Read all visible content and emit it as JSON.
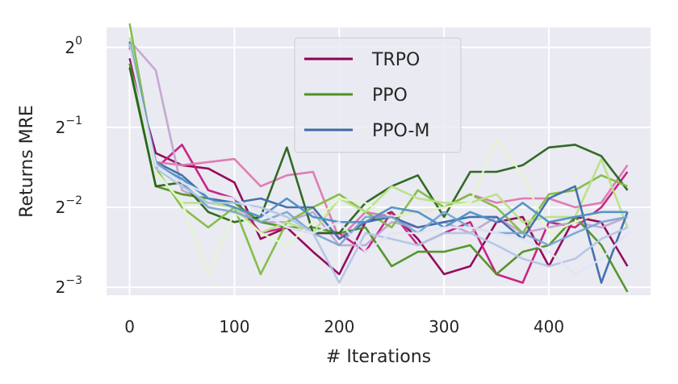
{
  "chart_data": {
    "type": "line",
    "xlabel": "# Iterations",
    "ylabel": "Returns MRE",
    "xlim": [
      -22,
      497
    ],
    "ylim_log2": [
      -3.1,
      0.25
    ],
    "y_scale": "log2",
    "grid": true,
    "legend_position": "top-center",
    "x_ticks": [
      0,
      100,
      200,
      300,
      400
    ],
    "y_ticks": [
      {
        "value": 1,
        "base": "2",
        "exp": "0"
      },
      {
        "value": 0.5,
        "base": "2",
        "exp": "−1"
      },
      {
        "value": 0.25,
        "base": "2",
        "exp": "−2"
      },
      {
        "value": 0.125,
        "base": "2",
        "exp": "−3"
      }
    ],
    "x": [
      0,
      25,
      50,
      75,
      100,
      125,
      150,
      175,
      200,
      225,
      250,
      275,
      300,
      325,
      350,
      375,
      400,
      425,
      450,
      475
    ],
    "series": [
      {
        "name": "TRPO",
        "color": "#8e0152",
        "values": [
          0.91,
          0.4,
          0.36,
          0.35,
          0.31,
          0.19,
          0.21,
          0.17,
          0.14,
          0.22,
          0.24,
          0.19,
          0.14,
          0.15,
          0.22,
          0.23,
          0.15,
          0.23,
          0.22,
          0.15
        ]
      },
      {
        "name": "",
        "color": "#c51b7d",
        "values": [
          1.0,
          0.35,
          0.43,
          0.29,
          0.27,
          0.2,
          0.21,
          0.2,
          0.2,
          0.17,
          0.24,
          0.18,
          0.2,
          0.22,
          0.14,
          0.13,
          0.22,
          0.21,
          0.25,
          0.34
        ]
      },
      {
        "name": "",
        "color": "#de77ae",
        "values": [
          1.0,
          0.37,
          0.36,
          0.37,
          0.38,
          0.3,
          0.33,
          0.34,
          0.19,
          0.24,
          0.23,
          0.24,
          0.25,
          0.28,
          0.26,
          0.27,
          0.27,
          0.25,
          0.26,
          0.36
        ]
      },
      {
        "name": "",
        "color": "#c2a5cf",
        "values": [
          1.06,
          0.82,
          0.29,
          0.26,
          0.25,
          0.22,
          0.22,
          0.24,
          0.18,
          0.18,
          0.22,
          0.21,
          0.22,
          0.2,
          0.23,
          0.2,
          0.21,
          0.22,
          0.21,
          0.23
        ]
      },
      {
        "name": "PPO",
        "color": "#4d9221",
        "values": [
          0.87,
          0.3,
          0.28,
          0.27,
          0.26,
          0.22,
          0.21,
          0.21,
          0.2,
          0.21,
          0.15,
          0.17,
          0.17,
          0.18,
          0.14,
          0.17,
          0.18,
          0.23,
          0.18,
          0.12
        ]
      },
      {
        "name": "",
        "color": "#276419",
        "values": [
          0.84,
          0.3,
          0.31,
          0.24,
          0.22,
          0.23,
          0.42,
          0.2,
          0.2,
          0.26,
          0.3,
          0.33,
          0.23,
          0.34,
          0.34,
          0.36,
          0.42,
          0.43,
          0.39,
          0.29
        ]
      },
      {
        "name": "",
        "color": "#7fbc41",
        "values": [
          1.23,
          0.35,
          0.25,
          0.21,
          0.25,
          0.14,
          0.22,
          0.25,
          0.28,
          0.24,
          0.21,
          0.29,
          0.25,
          0.28,
          0.25,
          0.2,
          0.28,
          0.29,
          0.33,
          0.3
        ]
      },
      {
        "name": "",
        "color": "#b8e186",
        "values": [
          1.09,
          0.34,
          0.26,
          0.26,
          0.25,
          0.2,
          0.22,
          0.2,
          0.27,
          0.24,
          0.3,
          0.27,
          0.26,
          0.26,
          0.28,
          0.22,
          0.23,
          0.23,
          0.38,
          0.21
        ]
      },
      {
        "name": "",
        "color": "#e6f5d0",
        "values": [
          1.04,
          0.34,
          0.26,
          0.14,
          0.24,
          0.2,
          0.18,
          0.22,
          0.27,
          0.26,
          0.23,
          0.24,
          0.25,
          0.26,
          0.45,
          0.33,
          0.2,
          0.22,
          0.24,
          0.24
        ]
      },
      {
        "name": "PPO-M",
        "color": "#3d6ba7",
        "values": [
          1.02,
          0.37,
          0.33,
          0.27,
          0.26,
          0.27,
          0.25,
          0.25,
          0.19,
          0.22,
          0.23,
          0.21,
          0.22,
          0.23,
          0.23,
          0.19,
          0.27,
          0.3,
          0.13,
          0.24
        ]
      },
      {
        "name": "",
        "color": "#7aa6d2",
        "values": [
          1.05,
          0.37,
          0.31,
          0.25,
          0.24,
          0.22,
          0.24,
          0.2,
          0.18,
          0.23,
          0.23,
          0.2,
          0.24,
          0.21,
          0.2,
          0.2,
          0.18,
          0.2,
          0.22,
          0.23
        ]
      },
      {
        "name": "",
        "color": "#4f8fc7",
        "values": [
          1.05,
          0.36,
          0.32,
          0.27,
          0.25,
          0.23,
          0.27,
          0.23,
          0.22,
          0.22,
          0.25,
          0.24,
          0.21,
          0.24,
          0.22,
          0.26,
          0.22,
          0.23,
          0.24,
          0.24
        ]
      },
      {
        "name": "",
        "color": "#b3c6e4",
        "values": [
          1.03,
          0.35,
          0.3,
          0.26,
          0.26,
          0.25,
          0.23,
          0.2,
          0.13,
          0.2,
          0.19,
          0.18,
          0.2,
          0.2,
          0.18,
          0.16,
          0.15,
          0.16,
          0.19,
          0.21
        ]
      },
      {
        "name": "",
        "color": "#dfe6f3",
        "values": [
          0.98,
          0.36,
          0.31,
          0.28,
          0.27,
          0.24,
          0.21,
          0.2,
          0.22,
          0.17,
          0.2,
          0.2,
          0.21,
          0.21,
          0.2,
          0.19,
          0.17,
          0.14,
          0.16,
          0.2
        ]
      }
    ]
  }
}
